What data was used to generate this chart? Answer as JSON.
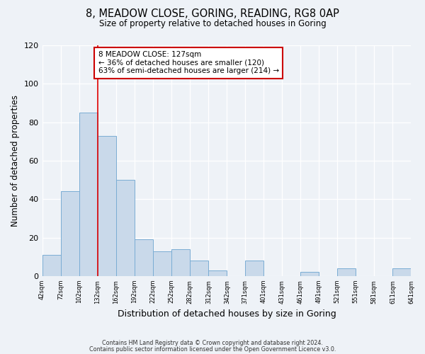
{
  "title": "8, MEADOW CLOSE, GORING, READING, RG8 0AP",
  "subtitle": "Size of property relative to detached houses in Goring",
  "xlabel": "Distribution of detached houses by size in Goring",
  "ylabel": "Number of detached properties",
  "bar_color": "#c9d9ea",
  "bar_edge_color": "#7aadd4",
  "bins": [
    42,
    72,
    102,
    132,
    162,
    192,
    222,
    252,
    282,
    312,
    342,
    371,
    401,
    431,
    461,
    491,
    521,
    551,
    581,
    611,
    641
  ],
  "counts": [
    11,
    44,
    85,
    73,
    50,
    19,
    13,
    14,
    8,
    3,
    0,
    8,
    0,
    0,
    2,
    0,
    4,
    0,
    0,
    4
  ],
  "tick_labels": [
    "42sqm",
    "72sqm",
    "102sqm",
    "132sqm",
    "162sqm",
    "192sqm",
    "222sqm",
    "252sqm",
    "282sqm",
    "312sqm",
    "342sqm",
    "371sqm",
    "401sqm",
    "431sqm",
    "461sqm",
    "491sqm",
    "521sqm",
    "551sqm",
    "581sqm",
    "611sqm",
    "641sqm"
  ],
  "ylim": [
    0,
    120
  ],
  "yticks": [
    0,
    20,
    40,
    60,
    80,
    100,
    120
  ],
  "vline_x": 132,
  "vline_color": "#dd0000",
  "annotation_title": "8 MEADOW CLOSE: 127sqm",
  "annotation_line1": "← 36% of detached houses are smaller (120)",
  "annotation_line2": "63% of semi-detached houses are larger (214) →",
  "annotation_box_facecolor": "#ffffff",
  "annotation_box_edgecolor": "#cc0000",
  "footer1": "Contains HM Land Registry data © Crown copyright and database right 2024.",
  "footer2": "Contains public sector information licensed under the Open Government Licence v3.0.",
  "background_color": "#eef2f7",
  "plot_background": "#eef2f7",
  "grid_color": "#ffffff"
}
